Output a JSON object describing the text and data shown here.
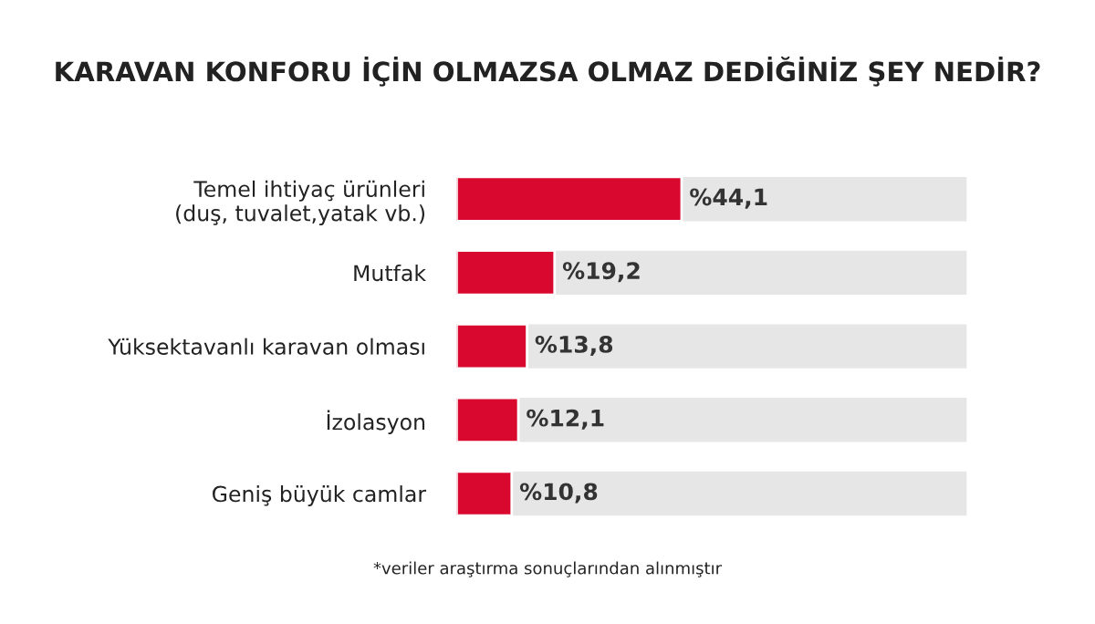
{
  "chart_data": {
    "type": "bar",
    "orientation": "horizontal",
    "title": "KARAVAN KONFORU İÇİN OLMAZSA OLMAZ DEDİĞİNİZ ŞEY NEDİR?",
    "categories": [
      "Temel ihtiyaç ürünleri\n(duş, tuvalet,yatak vb.)",
      "Mutfak",
      "Yüksektavanlı karavan olması",
      "İzolasyon",
      "Geniş büyük camlar"
    ],
    "values": [
      44.1,
      19.2,
      13.8,
      12.1,
      10.8
    ],
    "value_labels": [
      "%44,1",
      "%19,2",
      "%13,8",
      "%12,1",
      "%10,8"
    ],
    "color": "#d9082f",
    "xlim": [
      0,
      100
    ],
    "tick_labels": "y",
    "grid": false,
    "legend": false,
    "annotations": [
      "*veriler araştırma sonuçlarından alınmıştır"
    ]
  }
}
